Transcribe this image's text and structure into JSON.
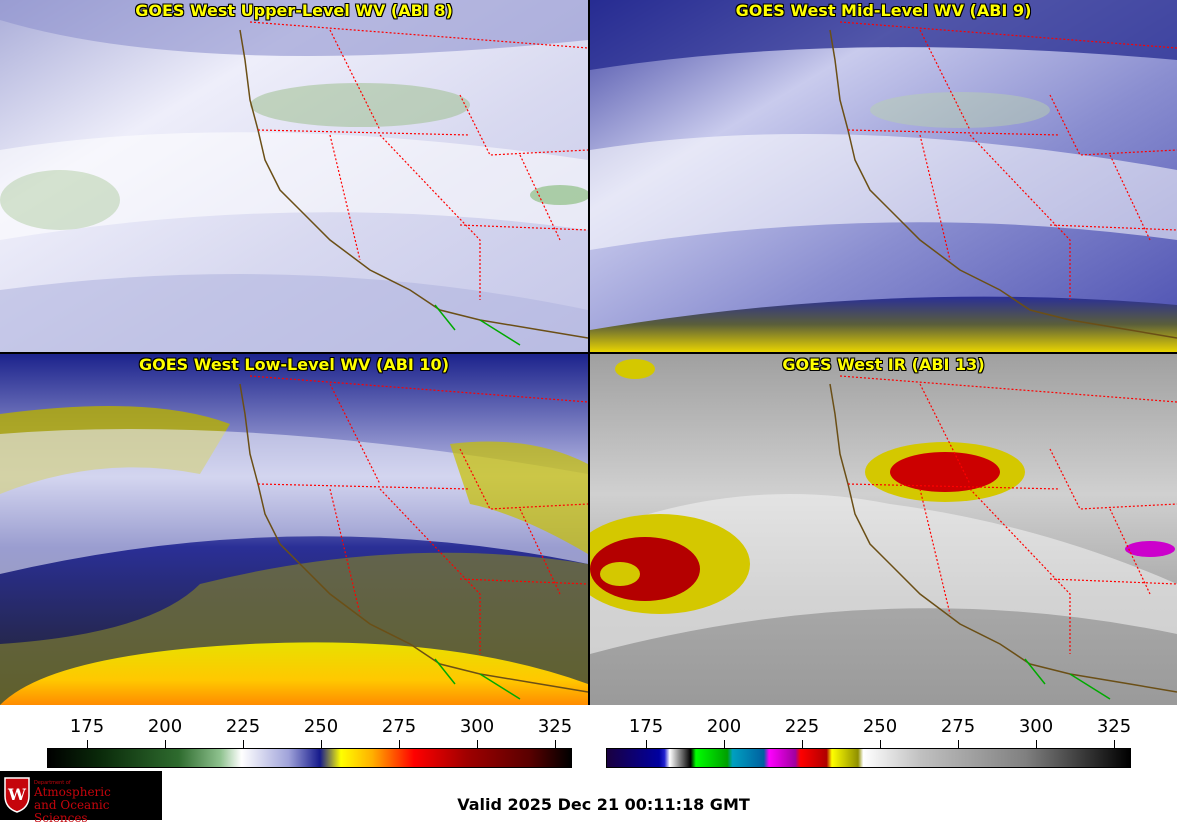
{
  "panels": [
    {
      "title": "GOES West Upper-Level WV (ABI 8)",
      "palette": "wv_upper"
    },
    {
      "title": "GOES West Mid-Level WV (ABI 9)",
      "palette": "wv_mid"
    },
    {
      "title": "GOES West Low-Level WV (ABI 10)",
      "palette": "wv_low"
    },
    {
      "title": "GOES West IR (ABI 13)",
      "palette": "ir"
    }
  ],
  "colorbars": [
    {
      "name": "water-vapor",
      "ticks": [
        "175",
        "200",
        "225",
        "250",
        "275",
        "300",
        "325"
      ]
    },
    {
      "name": "infrared",
      "ticks": [
        "175",
        "200",
        "225",
        "250",
        "275",
        "300",
        "325"
      ]
    }
  ],
  "valid_time": "Valid 2025 Dec 21 00:11:18 GMT",
  "logo": {
    "line1": "Department of",
    "line2": "Atmospheric",
    "line3": "and Oceanic Sciences"
  },
  "colors": {
    "state_borders": "#ff0000",
    "coastline": "#6b4f16",
    "mexico_border": "#00aa00",
    "title_text": "#ffff00"
  }
}
